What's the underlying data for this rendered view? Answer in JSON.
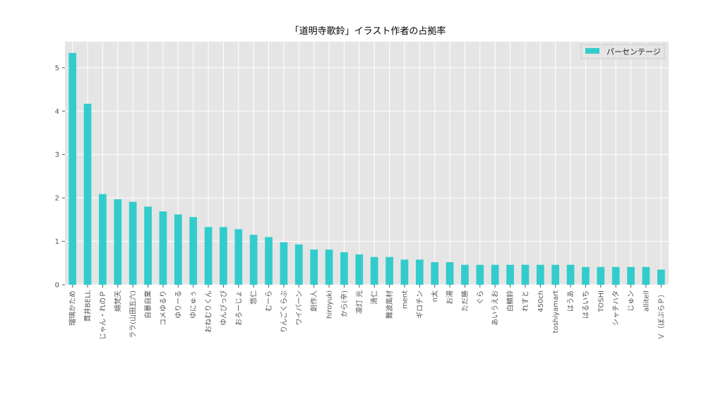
{
  "chart_data": {
    "type": "bar",
    "title": "「道明寺歌鈴」イラスト作者の占拠率",
    "xlabel": "",
    "ylabel": "",
    "ylim": [
      0,
      5.6
    ],
    "yticks": [
      0,
      1,
      2,
      3,
      4,
      5
    ],
    "grid": true,
    "legend_position": "top-right",
    "bar_color": "#33cccc",
    "background_color": "#e5e5e5",
    "categories": [
      "瑠璃かため",
      "貫井BELL",
      "じゃん・れのＰ",
      "綿梵天",
      "ララ(山田五六)",
      "自暴自棄",
      "コメゆるり",
      "ゆりーる",
      "ゆにゅぅ",
      "おねむりくん",
      "ゆんぴっぴ",
      "おろーじょ",
      "悠仁",
      "むーら",
      "りんごくらぶ",
      "ワイバーン",
      "創作人",
      "hiroyuki",
      "から(辛)",
      "凛灯 光",
      "清仁",
      "難波風材",
      "ment",
      "ギロチン",
      "n太",
      "お湯",
      "ただ勝",
      "ぐら",
      "あいうえお",
      "白鯖鈴",
      "れすと",
      "450ch",
      "toshiyamart",
      "はうあ",
      "はるいち",
      "TOSHI",
      "シャチハタ",
      "じゅン",
      "allitell",
      "Ｖ（ぼぷらＰ）"
    ],
    "series": [
      {
        "name": "パーセンテージ",
        "values": [
          5.34,
          4.17,
          2.09,
          1.97,
          1.91,
          1.8,
          1.69,
          1.62,
          1.56,
          1.33,
          1.33,
          1.28,
          1.15,
          1.1,
          0.98,
          0.93,
          0.81,
          0.81,
          0.75,
          0.7,
          0.64,
          0.64,
          0.58,
          0.58,
          0.52,
          0.52,
          0.46,
          0.46,
          0.46,
          0.46,
          0.46,
          0.46,
          0.46,
          0.46,
          0.41,
          0.41,
          0.41,
          0.41,
          0.41,
          0.35
        ]
      }
    ]
  }
}
